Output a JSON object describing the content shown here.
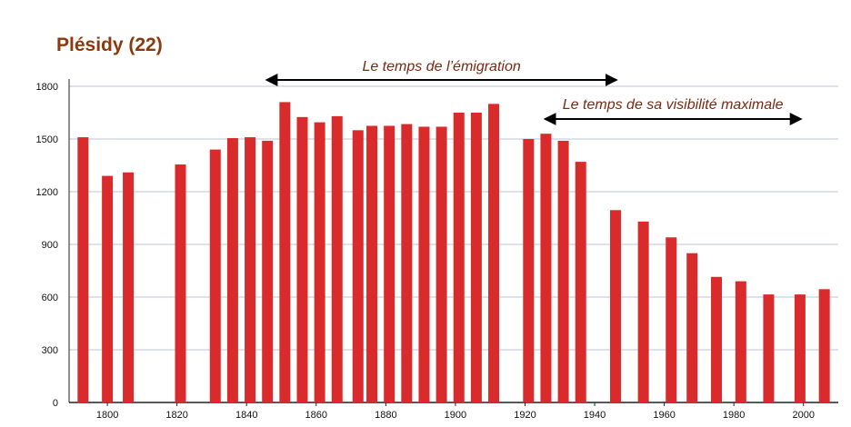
{
  "colors": {
    "bar": "#d92b2b",
    "title": "#8b3a0e",
    "annotation": "#7a2a12",
    "grid": "#b9c4d8",
    "arrow": "#000000",
    "axis": "#222222"
  },
  "chart_data": {
    "type": "bar",
    "title": "Plésidy (22)",
    "xlabel": "",
    "ylabel": "",
    "xlim": [
      1789,
      2010
    ],
    "ylim": [
      0,
      1800
    ],
    "yticks": [
      0,
      300,
      600,
      900,
      1200,
      1500,
      1800
    ],
    "xticks": [
      1800,
      1820,
      1840,
      1860,
      1880,
      1900,
      1920,
      1940,
      1960,
      1980,
      2000
    ],
    "grid": true,
    "x": [
      1793,
      1800,
      1806,
      1821,
      1831,
      1836,
      1841,
      1846,
      1851,
      1856,
      1861,
      1866,
      1872,
      1876,
      1881,
      1886,
      1891,
      1896,
      1901,
      1906,
      1911,
      1921,
      1926,
      1931,
      1936,
      1946,
      1954,
      1962,
      1968,
      1975,
      1982,
      1990,
      1999,
      2006
    ],
    "values": [
      1510,
      1290,
      1310,
      1355,
      1440,
      1505,
      1510,
      1490,
      1710,
      1625,
      1595,
      1630,
      1550,
      1575,
      1575,
      1585,
      1570,
      1570,
      1650,
      1650,
      1700,
      1500,
      1530,
      1490,
      1370,
      1095,
      1030,
      940,
      850,
      715,
      690,
      615,
      615,
      645
    ],
    "annotations": [
      {
        "text": "Le temps de l’émigration",
        "x_start": 1846,
        "x_end": 1946
      },
      {
        "text": "Le temps de sa visibilité maximale",
        "x_start": 1926,
        "x_end": 1999
      }
    ]
  }
}
